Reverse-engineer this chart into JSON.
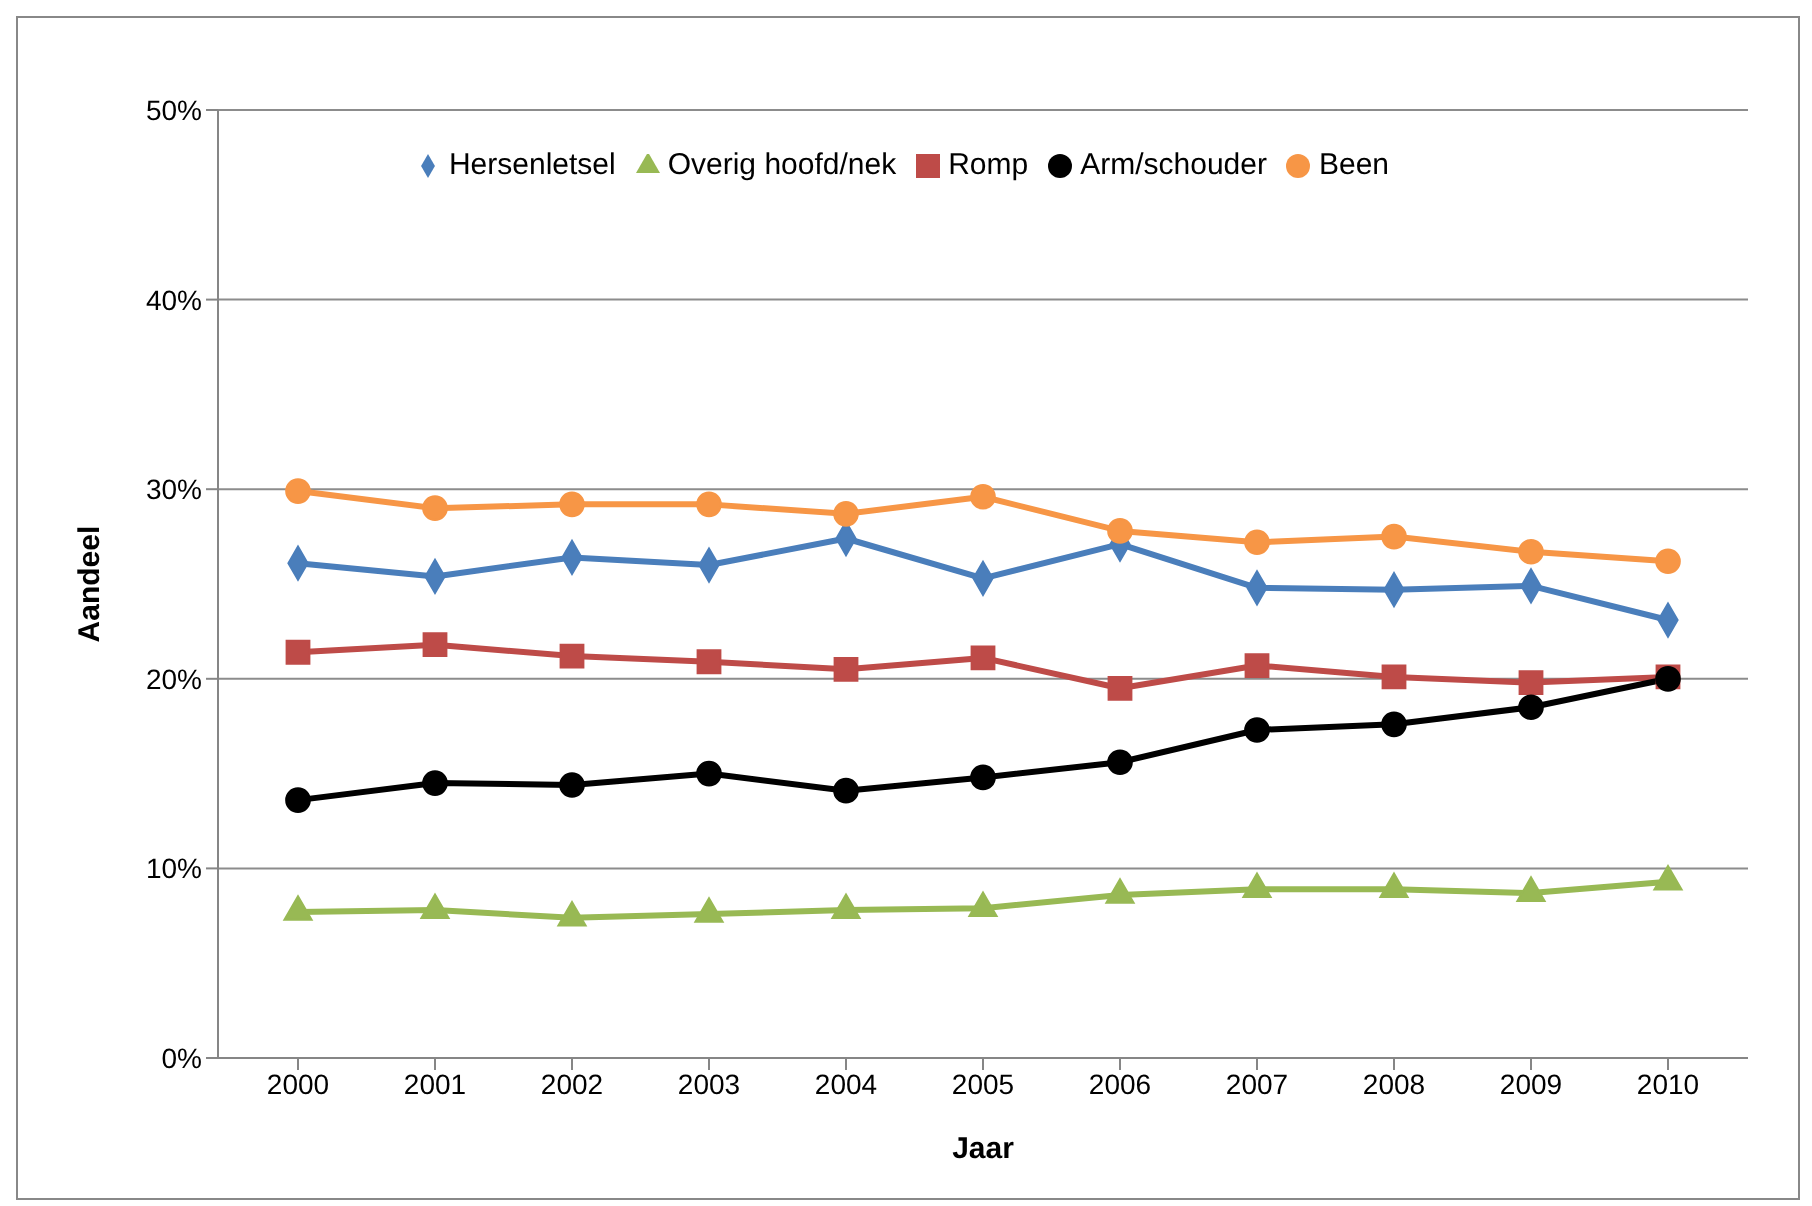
{
  "chart_data": {
    "type": "line",
    "xlabel": "Jaar",
    "ylabel": "Aandeel",
    "categories": [
      "2000",
      "2001",
      "2002",
      "2003",
      "2004",
      "2005",
      "2006",
      "2007",
      "2008",
      "2009",
      "2010"
    ],
    "series": [
      {
        "name": "Hersenletsel",
        "color": "#4a7ebb",
        "marker": "diamond",
        "values": [
          26.1,
          25.4,
          26.4,
          26.0,
          27.4,
          25.3,
          27.1,
          24.8,
          24.7,
          24.9,
          23.1
        ]
      },
      {
        "name": "Overig hoofd/nek",
        "color": "#98b954",
        "marker": "triangle",
        "values": [
          7.7,
          7.8,
          7.4,
          7.6,
          7.8,
          7.9,
          8.6,
          8.9,
          8.9,
          8.7,
          9.3
        ]
      },
      {
        "name": "Romp",
        "color": "#be4b48",
        "marker": "square",
        "values": [
          21.4,
          21.8,
          21.2,
          20.9,
          20.5,
          21.1,
          19.5,
          20.7,
          20.1,
          19.8,
          20.1
        ]
      },
      {
        "name": "Arm/schouder",
        "color": "#000000",
        "marker": "circle",
        "values": [
          13.6,
          14.5,
          14.4,
          15.0,
          14.1,
          14.8,
          15.6,
          17.3,
          17.6,
          18.5,
          20.0
        ]
      },
      {
        "name": "Been",
        "color": "#f79646",
        "marker": "circle",
        "values": [
          29.9,
          29.0,
          29.2,
          29.2,
          28.7,
          29.6,
          27.8,
          27.2,
          27.5,
          26.7,
          26.2
        ]
      }
    ],
    "ylim": [
      0,
      50
    ],
    "yticks": [
      {
        "value": 0,
        "label": "0%"
      },
      {
        "value": 10,
        "label": "10%"
      },
      {
        "value": 20,
        "label": "20%"
      },
      {
        "value": 30,
        "label": "30%"
      },
      {
        "value": 40,
        "label": "40%"
      },
      {
        "value": 50,
        "label": "50%"
      }
    ],
    "grid": "y",
    "legend": "top",
    "line_style": "solid"
  }
}
